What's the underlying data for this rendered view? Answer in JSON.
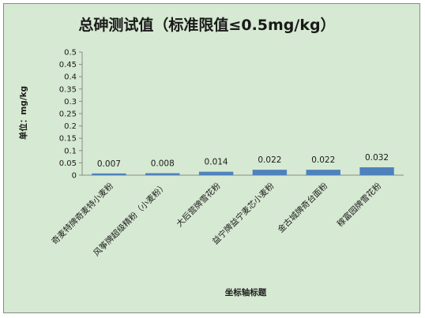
{
  "chart_data": {
    "type": "bar",
    "title": "总砷测试值（标准限值≤0.5mg/kg）",
    "xlabel": "坐标轴标题",
    "ylabel": "单位：mg/kg",
    "categories": [
      "奇麦特牌奇麦特小麦粉",
      "风筝牌超级精粉（小麦粉）",
      "大后营牌雪花粉",
      "益宁牌益宁麦芯小麦粉",
      "金古城牌奇台面粉",
      "稼富园牌雪花粉"
    ],
    "values": [
      0.007,
      0.008,
      0.014,
      0.022,
      0.022,
      0.032
    ],
    "data_labels": [
      "0.007",
      "0.008",
      "0.014",
      "0.022",
      "0.022",
      "0.032"
    ],
    "ylim": [
      0,
      0.5
    ],
    "yticks": [
      "0",
      "0.05",
      "0.1",
      "0.15",
      "0.2",
      "0.25",
      "0.3",
      "0.35",
      "0.4",
      "0.45",
      "0.5"
    ],
    "grid": false,
    "legend": "none",
    "colors": {
      "bar": "#4f81bd",
      "background": "#d6e9d2",
      "axis": "#8a8a8a",
      "text": "#1a1a1a"
    }
  }
}
